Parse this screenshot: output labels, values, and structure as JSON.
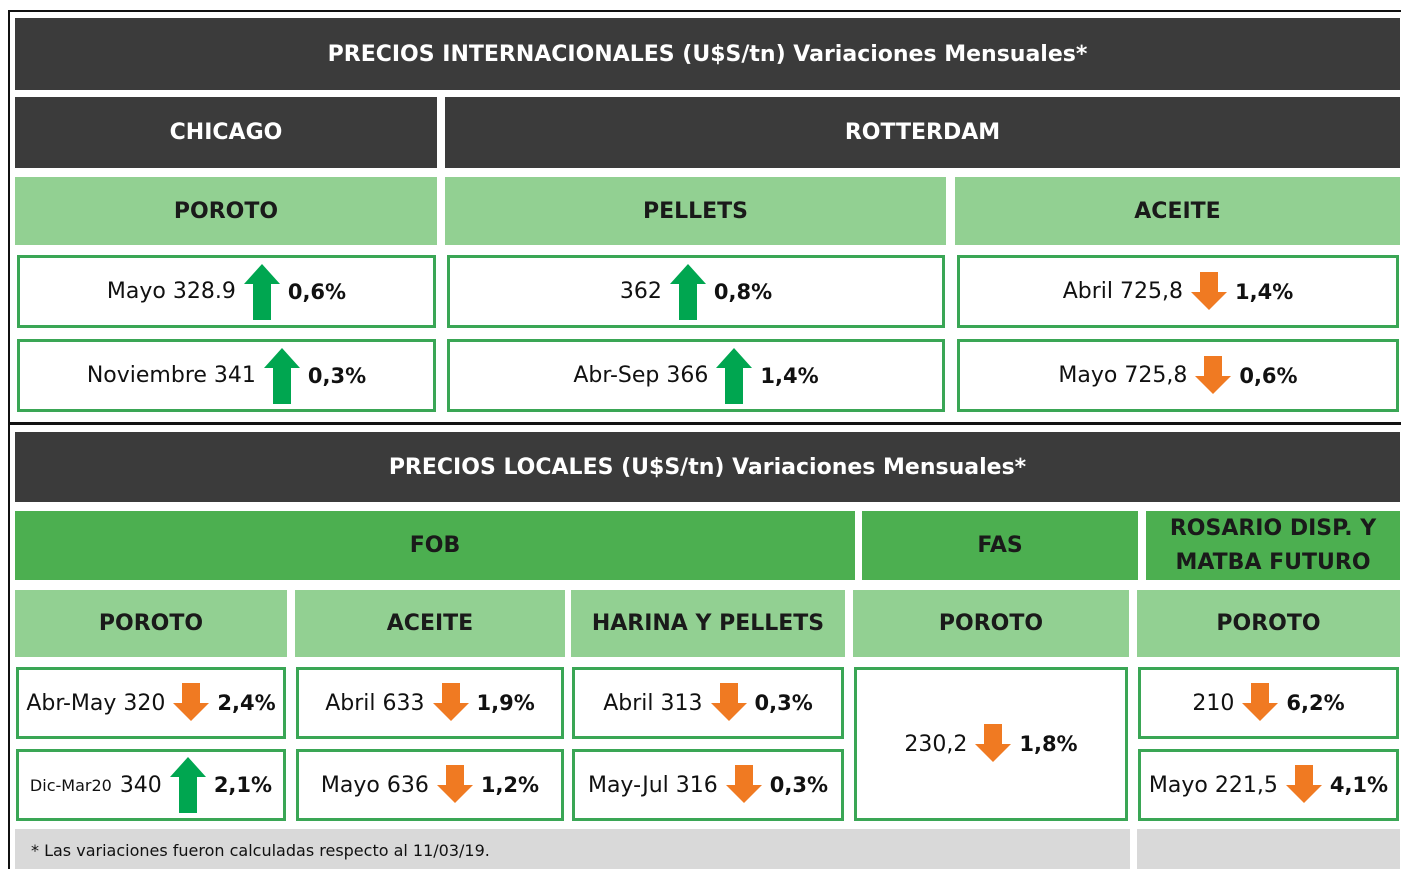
{
  "international": {
    "title": "PRECIOS INTERNACIONALES (U$S/tn) Variaciones Mensuales*",
    "markets": [
      "CHICAGO",
      "ROTTERDAM"
    ],
    "products": [
      "POROTO",
      "PELLETS",
      "ACEITE"
    ],
    "rows": [
      [
        {
          "label": "Mayo 328.9",
          "change": "0,6%"
        },
        {
          "label": "362",
          "change": "0,8%"
        },
        {
          "label": "Abril 725,8",
          "change": "1,4%"
        }
      ],
      [
        {
          "label": "Noviembre 341",
          "change": "0,3%"
        },
        {
          "label": "Abr-Sep 366",
          "change": "1,4%"
        },
        {
          "label": "Mayo 725,8",
          "change": "0,6%"
        }
      ]
    ]
  },
  "local": {
    "title": "PRECIOS LOCALES (U$S/tn) Variaciones Mensuales*",
    "markets": [
      "FOB",
      "FAS",
      "ROSARIO DISP. Y MATBA FUTURO"
    ],
    "products": [
      "POROTO",
      "ACEITE",
      "HARINA Y PELLETS",
      "POROTO",
      "POROTO"
    ],
    "rows": [
      [
        {
          "label": "Abr-May 320",
          "change": "2,4%"
        },
        {
          "label": "Abril 633",
          "change": "1,9%"
        },
        {
          "label": "Abril 313",
          "change": "0,3%"
        },
        {
          "label": "230,2",
          "change": "1,8%"
        },
        {
          "label": "210",
          "change": "6,2%"
        }
      ],
      [
        {
          "period": "Dic-Mar20",
          "label": "340",
          "change": "2,1%"
        },
        {
          "label": "Mayo 636",
          "change": "1,2%"
        },
        {
          "label": "May-Jul 316",
          "change": "0,3%"
        },
        {
          "label": "Mayo 221,5",
          "change": "4,1%"
        }
      ]
    ]
  },
  "footnote": "* Las variaciones fueron calculadas respecto al 11/03/19."
}
